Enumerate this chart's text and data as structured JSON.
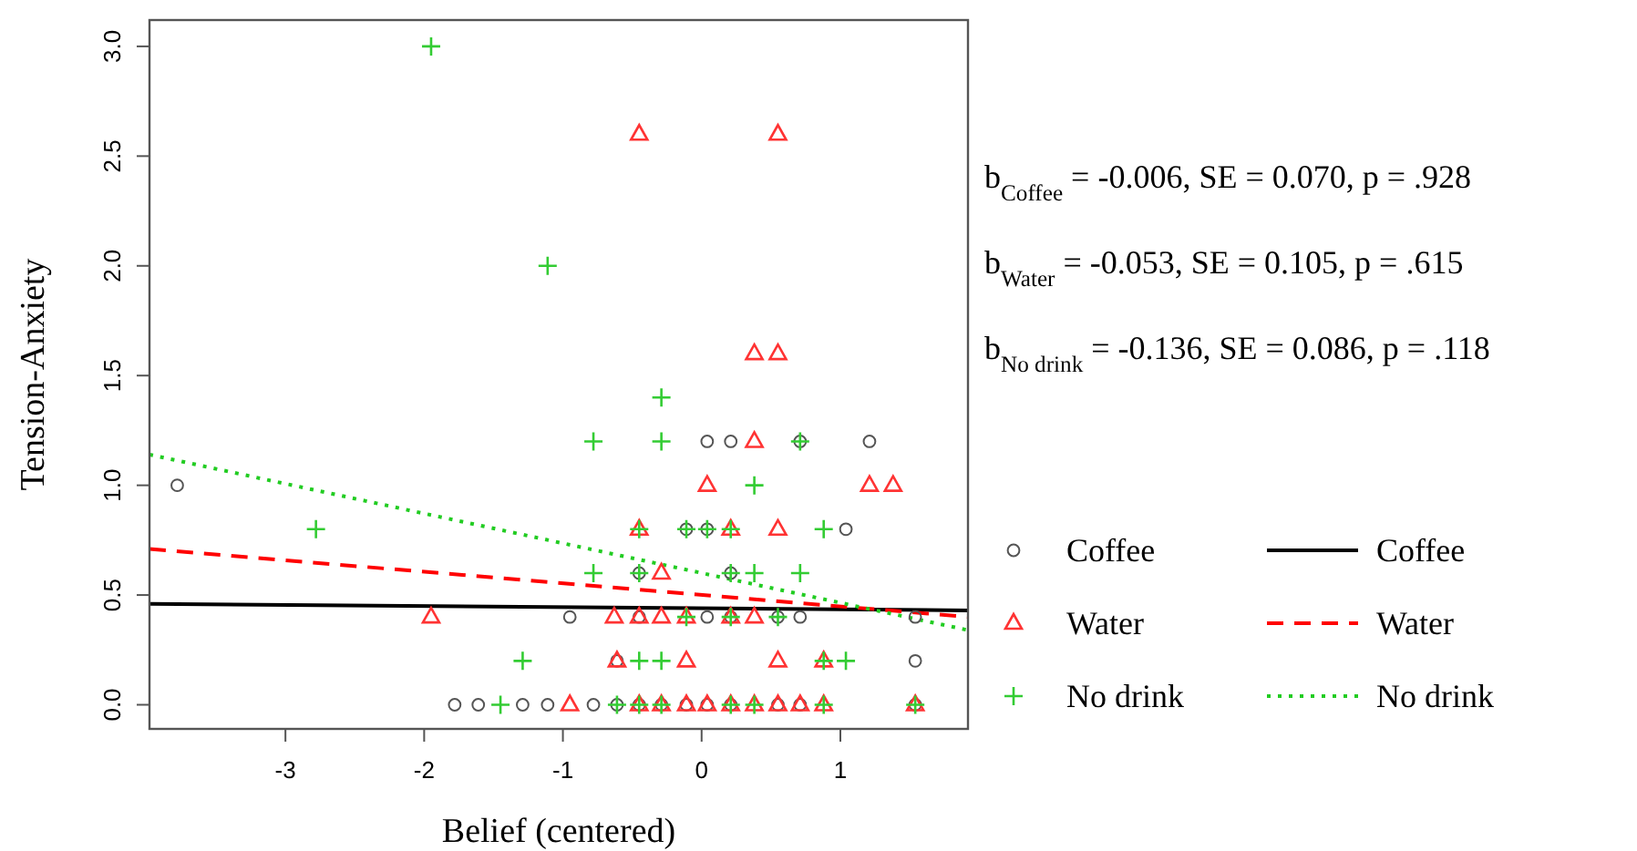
{
  "chart_data": {
    "type": "scatter",
    "xlabel": "Belief (centered)",
    "ylabel": "Tension-Anxiety",
    "xlim": [
      -3.98,
      1.92
    ],
    "ylim": [
      -0.11,
      3.12
    ],
    "xticks": [
      -3,
      -2,
      -1,
      0,
      1
    ],
    "yticks": [
      {
        "value": 0,
        "label": "0.0"
      },
      {
        "value": 0.5,
        "label": "0.5"
      },
      {
        "value": 1,
        "label": "1.0"
      },
      {
        "value": 1.5,
        "label": "1.5"
      },
      {
        "value": 2,
        "label": "2.0"
      },
      {
        "value": 2.5,
        "label": "2.5"
      },
      {
        "value": 3,
        "label": "3.0"
      }
    ],
    "grid": false,
    "legend": "right",
    "annotations": [
      "b$_{Coffee}$ = -0.006, SE = 0.070, p = .928",
      "b$_{Water}$ = -0.053, SE = 0.105, p = .615",
      "b$_{No drink}$ = -0.136, SE = 0.086, p = .118"
    ],
    "series": [
      {
        "name": "Coffee",
        "marker": "circle",
        "color": "#555555",
        "x": [
          -3.78,
          -1.78,
          -1.61,
          -1.29,
          -1.11,
          -0.78,
          -0.61,
          -0.45,
          -0.29,
          -0.11,
          0.04,
          0.21,
          0.55,
          0.71,
          1.54,
          -0.61,
          1.54,
          -0.95,
          -0.45,
          0.04,
          0.21,
          0.55,
          0.71,
          1.54,
          -0.45,
          0.21,
          -0.11,
          0.04,
          1.04,
          0.04,
          0.21,
          0.71,
          1.21
        ],
        "values": [
          1.0,
          0,
          0,
          0,
          0,
          0,
          0,
          0,
          0,
          0,
          0,
          0,
          0,
          0,
          0,
          0.2,
          0.2,
          0.4,
          0.4,
          0.4,
          0.4,
          0.4,
          0.4,
          0.4,
          0.6,
          0.6,
          0.8,
          0.8,
          0.8,
          1.2,
          1.2,
          1.2,
          1.2
        ]
      },
      {
        "name": "Water",
        "marker": "triangle",
        "color": "#ff3333",
        "x": [
          -0.45,
          0.55,
          0.38,
          0.55,
          0.38,
          0.04,
          1.21,
          1.38,
          -0.45,
          0.21,
          0.55,
          -0.29,
          -1.95,
          -0.63,
          -0.45,
          -0.29,
          -0.11,
          0.21,
          0.38,
          -0.61,
          -0.11,
          0.55,
          0.88,
          -0.95,
          -0.45,
          -0.29,
          -0.11,
          0.04,
          0.21,
          0.38,
          0.55,
          0.71,
          0.88,
          1.54
        ],
        "values": [
          2.6,
          2.6,
          1.6,
          1.6,
          1.2,
          1.0,
          1.0,
          1.0,
          0.8,
          0.8,
          0.8,
          0.6,
          0.4,
          0.4,
          0.4,
          0.4,
          0.4,
          0.4,
          0.4,
          0.2,
          0.2,
          0.2,
          0.2,
          0,
          0,
          0,
          0,
          0,
          0,
          0,
          0,
          0,
          0,
          0
        ]
      },
      {
        "name": "No drink",
        "marker": "cross",
        "color": "#33cc33",
        "x": [
          -1.95,
          -1.11,
          -0.29,
          -0.78,
          -0.29,
          0.71,
          0.38,
          -2.78,
          -0.45,
          -0.11,
          0.04,
          0.21,
          0.88,
          -0.78,
          -0.45,
          0.21,
          0.38,
          0.71,
          -0.11,
          0.21,
          0.55,
          -1.29,
          -0.45,
          -0.29,
          0.88,
          1.04,
          -1.45,
          -0.61,
          -0.45,
          -0.29,
          0.21,
          0.38,
          0.88,
          1.54
        ],
        "values": [
          3.0,
          2.0,
          1.4,
          1.2,
          1.2,
          1.2,
          1.0,
          0.8,
          0.8,
          0.8,
          0.8,
          0.8,
          0.8,
          0.6,
          0.6,
          0.6,
          0.6,
          0.6,
          0.4,
          0.4,
          0.4,
          0.2,
          0.2,
          0.2,
          0.2,
          0.2,
          0,
          0,
          0,
          0,
          0,
          0,
          0,
          0
        ]
      },
      {
        "name": "Coffee",
        "type": "line",
        "line_style": "solid",
        "color": "#000000",
        "x": [
          -3.98,
          1.92
        ],
        "values": [
          0.46,
          0.43
        ]
      },
      {
        "name": "Water",
        "type": "line",
        "line_style": "dashed",
        "color": "#ff0000",
        "x": [
          -3.98,
          1.92
        ],
        "values": [
          0.71,
          0.4
        ]
      },
      {
        "name": "No drink",
        "type": "line",
        "line_style": "dotted",
        "color": "#22cc22",
        "x": [
          -3.98,
          1.92
        ],
        "values": [
          1.14,
          0.34
        ]
      }
    ]
  }
}
